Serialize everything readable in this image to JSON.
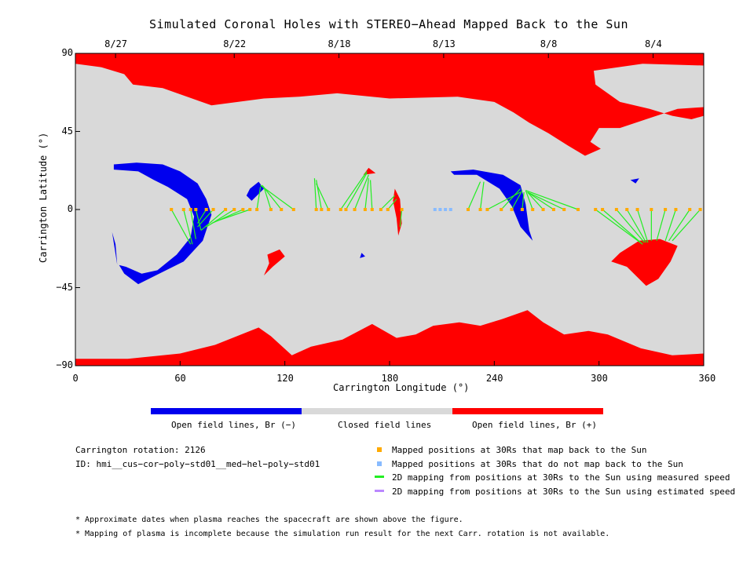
{
  "title": "Simulated Coronal Holes with STEREO−Ahead Mapped Back to the Sun",
  "chart_data": {
    "type": "map",
    "title": "Simulated Coronal Holes with STEREO−Ahead Mapped Back to the Sun",
    "xlabel": "Carrington Longitude (°)",
    "ylabel": "Carrington Latitude (°)",
    "xlim": [
      0,
      360
    ],
    "ylim": [
      -90,
      90
    ],
    "xticks": [
      0,
      60,
      120,
      180,
      240,
      300,
      360
    ],
    "yticks": [
      90,
      45,
      0,
      -45,
      -90
    ],
    "ytick_labels": [
      "90",
      "45",
      "0",
      "−45",
      "−90"
    ],
    "top_axis_dates": [
      {
        "lon": 23,
        "label": "8/27"
      },
      {
        "lon": 91,
        "label": "8/22"
      },
      {
        "lon": 151,
        "label": "8/18"
      },
      {
        "lon": 211,
        "label": "8/13"
      },
      {
        "lon": 271,
        "label": "8/8"
      },
      {
        "lon": 331,
        "label": "8/4"
      }
    ],
    "colors": {
      "open_negative": "#0000ee",
      "closed": "#d9d9d9",
      "open_positive": "#ff0000",
      "mapped": "#ffaa00",
      "unmapped": "#88bbff",
      "measured": "#22ee22",
      "estimated": "#bb88ff"
    },
    "mapped_points": [
      {
        "lon": 55,
        "to": [
          66,
          -20
        ]
      },
      {
        "lon": 62,
        "to": [
          67,
          -20
        ]
      },
      {
        "lon": 66,
        "to": [
          69,
          -17
        ]
      },
      {
        "lon": 69,
        "to": [
          72,
          -12
        ]
      },
      {
        "lon": 75,
        "to": [
          70,
          -8
        ]
      },
      {
        "lon": 79,
        "to": [
          70,
          -10
        ]
      },
      {
        "lon": 86,
        "to": [
          72,
          -12
        ]
      },
      {
        "lon": 91,
        "to": [
          75,
          -10
        ]
      },
      {
        "lon": 96,
        "to": [
          78,
          -8
        ]
      },
      {
        "lon": 100,
        "to": [
          80,
          -7
        ]
      },
      {
        "lon": 104,
        "to": [
          106,
          13
        ]
      },
      {
        "lon": 112,
        "to": [
          108,
          13
        ]
      },
      {
        "lon": 118,
        "to": [
          107,
          14
        ]
      },
      {
        "lon": 125,
        "to": [
          106,
          14
        ]
      },
      {
        "lon": 138,
        "to": [
          137,
          18
        ]
      },
      {
        "lon": 141,
        "to": [
          138,
          17
        ]
      },
      {
        "lon": 145,
        "to": [
          138,
          15
        ]
      },
      {
        "lon": 152,
        "to": [
          167,
          22
        ]
      },
      {
        "lon": 155,
        "to": [
          167,
          21
        ]
      },
      {
        "lon": 160,
        "to": [
          168,
          20
        ]
      },
      {
        "lon": 166,
        "to": [
          168,
          18
        ]
      },
      {
        "lon": 170,
        "to": [
          169,
          17
        ]
      },
      {
        "lon": 175,
        "to": [
          183,
          8
        ]
      },
      {
        "lon": 179,
        "to": [
          184,
          6
        ]
      },
      {
        "lon": 187,
        "to": [
          186,
          -10
        ]
      },
      {
        "lon": 225,
        "to": [
          232,
          16
        ]
      },
      {
        "lon": 232,
        "to": [
          234,
          16
        ]
      },
      {
        "lon": 236,
        "to": [
          255,
          10
        ]
      },
      {
        "lon": 244,
        "to": [
          255,
          12
        ]
      },
      {
        "lon": 250,
        "to": [
          256,
          11
        ]
      },
      {
        "lon": 256,
        "to": [
          257,
          10
        ]
      },
      {
        "lon": 262,
        "to": [
          258,
          11
        ]
      },
      {
        "lon": 268,
        "to": [
          259,
          10
        ]
      },
      {
        "lon": 274,
        "to": [
          259,
          10
        ]
      },
      {
        "lon": 280,
        "to": [
          259,
          10
        ]
      },
      {
        "lon": 288,
        "to": [
          258,
          11
        ]
      },
      {
        "lon": 298,
        "to": [
          325,
          -20
        ]
      },
      {
        "lon": 302,
        "to": [
          325,
          -20
        ]
      },
      {
        "lon": 310,
        "to": [
          326,
          -19
        ]
      },
      {
        "lon": 316,
        "to": [
          327,
          -19
        ]
      },
      {
        "lon": 322,
        "to": [
          328,
          -19
        ]
      },
      {
        "lon": 330,
        "to": [
          330,
          -18
        ]
      },
      {
        "lon": 338,
        "to": [
          333,
          -18
        ]
      },
      {
        "lon": 344,
        "to": [
          338,
          -18
        ]
      },
      {
        "lon": 352,
        "to": [
          340,
          -18
        ]
      },
      {
        "lon": 358,
        "to": [
          342,
          -18
        ]
      }
    ],
    "unmapped_points": [
      {
        "lon": 206
      },
      {
        "lon": 209
      },
      {
        "lon": 212
      },
      {
        "lon": 215
      }
    ]
  },
  "colorbar": {
    "labels": [
      "Open field lines, Br (−)",
      "Closed field lines",
      "Open field lines, Br (+)"
    ],
    "colors": [
      "#0000ee",
      "#d9d9d9",
      "#ff0000"
    ]
  },
  "info": {
    "rotation": "Carrington rotation: 2126",
    "id": "ID: hmi__cus−cor−poly−std01__med−hel−poly−std01"
  },
  "legend": [
    {
      "label": "Mapped positions at 30Rs that map back to the Sun",
      "color": "#ffaa00"
    },
    {
      "label": "Mapped positions at 30Rs that do not map back to the Sun",
      "color": "#88bbff"
    },
    {
      "label": "2D mapping from positions at 30Rs to the Sun using measured speed",
      "color": "#22ee22"
    },
    {
      "label": "2D mapping from positions at 30Rs to the Sun using estimated speed",
      "color": "#bb88ff"
    }
  ],
  "footnotes": [
    "* Approximate dates when plasma reaches the spacecraft are shown above the figure.",
    "* Mapping of plasma is incomplete because the simulation run result for the next Carr. rotation is not available."
  ]
}
